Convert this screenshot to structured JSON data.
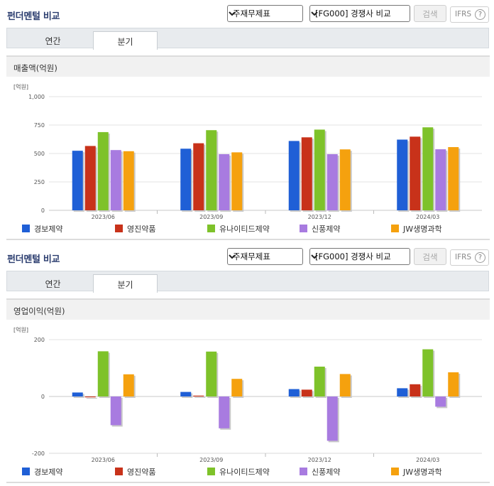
{
  "panels": [
    {
      "title": "펀더멘털 비교",
      "select_statement": "주재무제표",
      "select_compare": "[FG000] 경쟁사 비교",
      "search_label": "검색",
      "ifrs_label": "IFRS",
      "help_label": "?",
      "tabs": [
        {
          "label": "연간"
        },
        {
          "label": "분기"
        }
      ],
      "active_tab": "분기",
      "section_title": "매출액(억원)"
    },
    {
      "title": "펀더멘털 비교",
      "select_statement": "주재무제표",
      "select_compare": "[FG000] 경쟁사 비교",
      "search_label": "검색",
      "ifrs_label": "IFRS",
      "help_label": "?",
      "tabs": [
        {
          "label": "연간"
        },
        {
          "label": "분기"
        }
      ],
      "active_tab": "분기",
      "section_title": "영업이익(억원)"
    }
  ],
  "chart_data": [
    {
      "type": "bar",
      "unit_label": "[억원]",
      "categories": [
        "2023/06",
        "2023/09",
        "2023/12",
        "2024/03"
      ],
      "ylim": [
        0,
        1000
      ],
      "yticks": [
        0,
        250,
        500,
        750,
        1000
      ],
      "ytick_labels": [
        "0",
        "250",
        "500",
        "750",
        "1,000"
      ],
      "grid": true,
      "legend_position": "bottom",
      "series": [
        {
          "name": "경보제약",
          "color": "#1f5fd6",
          "values": [
            524,
            542,
            610,
            622
          ]
        },
        {
          "name": "영진약품",
          "color": "#c8321a",
          "values": [
            566,
            590,
            642,
            648
          ]
        },
        {
          "name": "유나이티드제약",
          "color": "#7ec22a",
          "values": [
            688,
            705,
            710,
            730
          ]
        },
        {
          "name": "신풍제약",
          "color": "#a87be0",
          "values": [
            530,
            494,
            494,
            537
          ]
        },
        {
          "name": "JW생명과학",
          "color": "#f5a10e",
          "values": [
            520,
            510,
            536,
            556
          ]
        }
      ]
    },
    {
      "type": "bar",
      "unit_label": "[억원]",
      "categories": [
        "2023/06",
        "2023/09",
        "2023/12",
        "2024/03"
      ],
      "ylim": [
        -200,
        200
      ],
      "yticks": [
        -200,
        0,
        200
      ],
      "ytick_labels": [
        "-200",
        "0",
        "200"
      ],
      "grid": true,
      "legend_position": "bottom",
      "series": [
        {
          "name": "경보제약",
          "color": "#1f5fd6",
          "values": [
            14,
            16,
            26,
            29
          ]
        },
        {
          "name": "영진약품",
          "color": "#c8321a",
          "values": [
            -3,
            3,
            24,
            43
          ]
        },
        {
          "name": "유나이티드제약",
          "color": "#7ec22a",
          "values": [
            159,
            158,
            105,
            166
          ]
        },
        {
          "name": "신풍제약",
          "color": "#a87be0",
          "values": [
            -101,
            -112,
            -156,
            -36
          ]
        },
        {
          "name": "JW생명과학",
          "color": "#f5a10e",
          "values": [
            78,
            62,
            79,
            85
          ]
        }
      ]
    }
  ]
}
